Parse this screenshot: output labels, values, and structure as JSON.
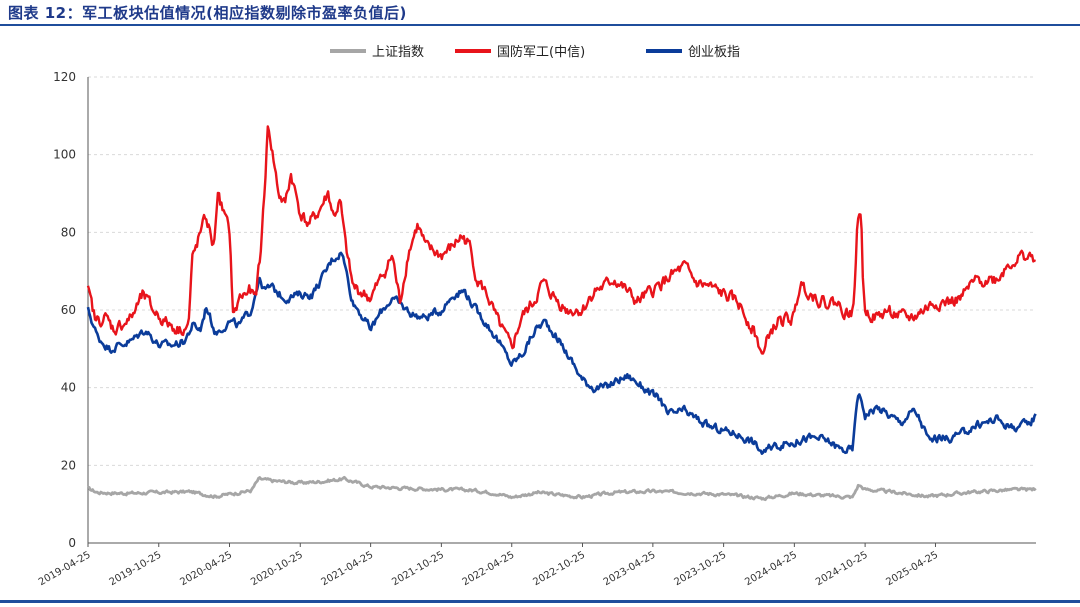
{
  "header": {
    "title": "图表 12：军工板块估值情况(相应指数剔除市盈率负值后)"
  },
  "colors": {
    "sse": "#a6a6a6",
    "defense": "#e8141b",
    "chinext": "#0b3c9a",
    "rule": "#1f4e9c"
  },
  "chart_data": {
    "type": "line",
    "title": "图表 12：军工板块估值情况(相应指数剔除市盈率负值后)",
    "xlabel": "",
    "ylabel": "",
    "ylim": [
      0,
      120
    ],
    "yticks": [
      0,
      20,
      40,
      60,
      80,
      100,
      120
    ],
    "grid": "horizontal-dashed",
    "legend_position": "top-center",
    "x_range": [
      "2019-04-25",
      "2026-01-10"
    ],
    "x_ticks": [
      "2019-04-25",
      "2019-10-25",
      "2020-04-25",
      "2020-10-25",
      "2021-04-25",
      "2021-10-25",
      "2022-04-25",
      "2022-10-25",
      "2023-04-25",
      "2023-10-25",
      "2024-04-25",
      "2024-10-25",
      "2025-04-25"
    ],
    "series": [
      {
        "name": "上证指数",
        "key": "sse",
        "values": [
          [
            "2019-04-25",
            14
          ],
          [
            "2019-05-20",
            13
          ],
          [
            "2019-08-01",
            12.8
          ],
          [
            "2019-10-25",
            13
          ],
          [
            "2020-01-15",
            13.2
          ],
          [
            "2020-03-20",
            12
          ],
          [
            "2020-04-25",
            12.6
          ],
          [
            "2020-06-20",
            13.5
          ],
          [
            "2020-07-10",
            16.5
          ],
          [
            "2020-08-15",
            16
          ],
          [
            "2020-10-25",
            15.5
          ],
          [
            "2020-12-15",
            15.8
          ],
          [
            "2021-02-15",
            16.5
          ],
          [
            "2021-04-01",
            15.2
          ],
          [
            "2021-04-25",
            14.5
          ],
          [
            "2021-07-01",
            14.2
          ],
          [
            "2021-10-25",
            13.8
          ],
          [
            "2022-01-15",
            13.6
          ],
          [
            "2022-03-15",
            12.8
          ],
          [
            "2022-04-25",
            11.8
          ],
          [
            "2022-07-01",
            13
          ],
          [
            "2022-10-25",
            11.8
          ],
          [
            "2023-01-15",
            13
          ],
          [
            "2023-04-25",
            13.3
          ],
          [
            "2023-07-15",
            13
          ],
          [
            "2023-10-25",
            12.5
          ],
          [
            "2024-02-05",
            11.5
          ],
          [
            "2024-04-25",
            12.8
          ],
          [
            "2024-07-15",
            12.2
          ],
          [
            "2024-09-23",
            11.8
          ],
          [
            "2024-10-08",
            15
          ],
          [
            "2024-10-25",
            13.8
          ],
          [
            "2025-01-15",
            13
          ],
          [
            "2025-04-07",
            12
          ],
          [
            "2025-07-15",
            13
          ],
          [
            "2025-10-15",
            13.6
          ],
          [
            "2025-12-31",
            13.8
          ],
          [
            "2026-01-10",
            13.9
          ]
        ]
      },
      {
        "name": "国防军工(中信)",
        "key": "defense",
        "values": [
          [
            "2019-04-25",
            65
          ],
          [
            "2019-05-15",
            57
          ],
          [
            "2019-06-10",
            58
          ],
          [
            "2019-07-01",
            55
          ],
          [
            "2019-08-15",
            58
          ],
          [
            "2019-09-15",
            64
          ],
          [
            "2019-10-10",
            60
          ],
          [
            "2019-11-10",
            57
          ],
          [
            "2019-12-15",
            55
          ],
          [
            "2020-01-10",
            56
          ],
          [
            "2020-01-20",
            73
          ],
          [
            "2020-02-10",
            80
          ],
          [
            "2020-02-25",
            84
          ],
          [
            "2020-03-15",
            76
          ],
          [
            "2020-03-25",
            90
          ],
          [
            "2020-04-10",
            85
          ],
          [
            "2020-04-25",
            80
          ],
          [
            "2020-05-05",
            58
          ],
          [
            "2020-05-20",
            63
          ],
          [
            "2020-06-15",
            65
          ],
          [
            "2020-07-01",
            63
          ],
          [
            "2020-07-15",
            75
          ],
          [
            "2020-07-25",
            92
          ],
          [
            "2020-08-03",
            108
          ],
          [
            "2020-08-15",
            100
          ],
          [
            "2020-08-30",
            90
          ],
          [
            "2020-09-15",
            87
          ],
          [
            "2020-10-01",
            95
          ],
          [
            "2020-10-25",
            85
          ],
          [
            "2020-11-15",
            82
          ],
          [
            "2020-12-10",
            85
          ],
          [
            "2021-01-05",
            90
          ],
          [
            "2021-01-20",
            84
          ],
          [
            "2021-02-05",
            88
          ],
          [
            "2021-02-20",
            76
          ],
          [
            "2021-03-10",
            66
          ],
          [
            "2021-04-25",
            63
          ],
          [
            "2021-06-01",
            70
          ],
          [
            "2021-06-20",
            74
          ],
          [
            "2021-07-10",
            62
          ],
          [
            "2021-08-01",
            75
          ],
          [
            "2021-08-25",
            82
          ],
          [
            "2021-09-15",
            76
          ],
          [
            "2021-10-25",
            74
          ],
          [
            "2021-11-20",
            76
          ],
          [
            "2021-12-15",
            79
          ],
          [
            "2022-01-05",
            77
          ],
          [
            "2022-01-25",
            68
          ],
          [
            "2022-02-20",
            64
          ],
          [
            "2022-03-15",
            58
          ],
          [
            "2022-04-25",
            50
          ],
          [
            "2022-05-20",
            58
          ],
          [
            "2022-06-20",
            62
          ],
          [
            "2022-07-15",
            67
          ],
          [
            "2022-08-15",
            63
          ],
          [
            "2022-09-15",
            60
          ],
          [
            "2022-10-25",
            60
          ],
          [
            "2022-11-25",
            65
          ],
          [
            "2022-12-20",
            66
          ],
          [
            "2023-01-15",
            68
          ],
          [
            "2023-02-15",
            65
          ],
          [
            "2023-03-15",
            62
          ],
          [
            "2023-04-25",
            65
          ],
          [
            "2023-06-01",
            68
          ],
          [
            "2023-07-15",
            71
          ],
          [
            "2023-08-15",
            67
          ],
          [
            "2023-09-15",
            66
          ],
          [
            "2023-10-25",
            64
          ],
          [
            "2023-12-01",
            62
          ],
          [
            "2024-01-10",
            55
          ],
          [
            "2024-02-05",
            48
          ],
          [
            "2024-02-20",
            54
          ],
          [
            "2024-03-15",
            57
          ],
          [
            "2024-04-25",
            58
          ],
          [
            "2024-05-10",
            67
          ],
          [
            "2024-06-10",
            64
          ],
          [
            "2024-07-10",
            62
          ],
          [
            "2024-08-10",
            62
          ],
          [
            "2024-09-10",
            59
          ],
          [
            "2024-09-25",
            60
          ],
          [
            "2024-10-05",
            82
          ],
          [
            "2024-10-15",
            86
          ],
          [
            "2024-10-20",
            65
          ],
          [
            "2024-10-25",
            60
          ],
          [
            "2024-11-25",
            58
          ],
          [
            "2024-12-25",
            60
          ],
          [
            "2025-01-25",
            58
          ],
          [
            "2025-02-25",
            58
          ],
          [
            "2025-03-25",
            60
          ],
          [
            "2025-04-25",
            62
          ],
          [
            "2025-06-01",
            62
          ],
          [
            "2025-07-01",
            63
          ],
          [
            "2025-08-01",
            67
          ],
          [
            "2025-09-01",
            68
          ],
          [
            "2025-10-01",
            68
          ],
          [
            "2025-11-01",
            72
          ],
          [
            "2025-12-10",
            74
          ],
          [
            "2026-01-10",
            73
          ]
        ]
      },
      {
        "name": "创业板指",
        "key": "chinext",
        "values": [
          [
            "2019-04-25",
            60
          ],
          [
            "2019-05-20",
            53
          ],
          [
            "2019-06-20",
            50
          ],
          [
            "2019-07-15",
            51
          ],
          [
            "2019-08-15",
            52
          ],
          [
            "2019-09-20",
            55
          ],
          [
            "2019-10-25",
            51
          ],
          [
            "2019-12-01",
            51
          ],
          [
            "2019-12-31",
            52
          ],
          [
            "2020-01-20",
            56
          ],
          [
            "2020-02-10",
            55
          ],
          [
            "2020-02-25",
            61
          ],
          [
            "2020-03-20",
            54
          ],
          [
            "2020-04-25",
            57
          ],
          [
            "2020-05-20",
            56
          ],
          [
            "2020-06-20",
            60
          ],
          [
            "2020-07-10",
            68
          ],
          [
            "2020-07-25",
            65
          ],
          [
            "2020-08-10",
            66
          ],
          [
            "2020-09-15",
            63
          ],
          [
            "2020-10-25",
            64
          ],
          [
            "2020-11-25",
            64
          ],
          [
            "2020-12-25",
            69
          ],
          [
            "2021-01-15",
            73
          ],
          [
            "2021-02-10",
            75
          ],
          [
            "2021-02-25",
            68
          ],
          [
            "2021-03-10",
            62
          ],
          [
            "2021-03-25",
            60
          ],
          [
            "2021-04-25",
            55
          ],
          [
            "2021-05-25",
            60
          ],
          [
            "2021-06-20",
            63
          ],
          [
            "2021-07-15",
            61
          ],
          [
            "2021-08-10",
            59
          ],
          [
            "2021-09-10",
            58
          ],
          [
            "2021-10-25",
            60
          ],
          [
            "2021-11-25",
            64
          ],
          [
            "2021-12-25",
            65
          ],
          [
            "2022-01-15",
            61
          ],
          [
            "2022-02-15",
            57
          ],
          [
            "2022-03-15",
            53
          ],
          [
            "2022-04-25",
            46
          ],
          [
            "2022-05-25",
            49
          ],
          [
            "2022-06-25",
            55
          ],
          [
            "2022-07-20",
            57
          ],
          [
            "2022-08-20",
            53
          ],
          [
            "2022-09-20",
            48
          ],
          [
            "2022-10-25",
            42
          ],
          [
            "2022-11-25",
            40
          ],
          [
            "2022-12-25",
            40
          ],
          [
            "2023-01-25",
            42
          ],
          [
            "2023-02-20",
            43
          ],
          [
            "2023-03-20",
            41
          ],
          [
            "2023-04-25",
            38
          ],
          [
            "2023-05-15",
            37
          ],
          [
            "2023-06-01",
            33
          ],
          [
            "2023-07-15",
            34
          ],
          [
            "2023-08-15",
            32
          ],
          [
            "2023-09-15",
            30
          ],
          [
            "2023-10-25",
            29
          ],
          [
            "2023-12-01",
            28
          ],
          [
            "2024-01-10",
            26
          ],
          [
            "2024-02-05",
            23
          ],
          [
            "2024-03-01",
            25
          ],
          [
            "2024-04-25",
            26
          ],
          [
            "2024-05-25",
            27
          ],
          [
            "2024-06-25",
            27
          ],
          [
            "2024-07-25",
            26
          ],
          [
            "2024-08-25",
            24
          ],
          [
            "2024-09-23",
            24
          ],
          [
            "2024-10-05",
            38
          ],
          [
            "2024-10-15",
            37
          ],
          [
            "2024-10-25",
            33
          ],
          [
            "2024-11-25",
            35
          ],
          [
            "2024-12-25",
            33
          ],
          [
            "2025-01-25",
            31
          ],
          [
            "2025-02-25",
            34
          ],
          [
            "2025-03-10",
            33
          ],
          [
            "2025-04-10",
            26
          ],
          [
            "2025-04-25",
            27
          ],
          [
            "2025-06-01",
            27
          ],
          [
            "2025-07-01",
            28
          ],
          [
            "2025-08-01",
            30
          ],
          [
            "2025-09-01",
            31
          ],
          [
            "2025-10-01",
            32
          ],
          [
            "2025-11-01",
            30
          ],
          [
            "2025-12-01",
            30
          ],
          [
            "2025-12-25",
            31
          ],
          [
            "2026-01-10",
            33
          ]
        ]
      }
    ]
  }
}
